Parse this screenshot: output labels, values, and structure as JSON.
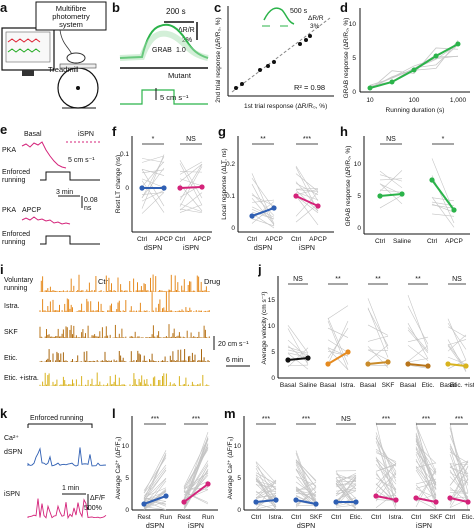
{
  "panels": {
    "a": {
      "label": "a",
      "system": [
        "Multifibre",
        "photometry",
        "system"
      ],
      "treadmill": "Treadmill"
    },
    "b": {
      "label": "b",
      "scale_time": "200 s",
      "scale_dr": "ΔR/R",
      "scale_pct": "2%",
      "green_label": "GRAB",
      "green_value": "1.0",
      "mutant": "Mutant",
      "speed": "5 cm s⁻¹"
    },
    "c": {
      "label": "c",
      "ylabel": "2nd trial response (ΔR/R₀, %)",
      "xlabel": "1st trial response (ΔR/R₀, %)",
      "inset_time": "500 s",
      "inset_dr": "ΔR/R",
      "inset_pct": "3%",
      "r2": "R² = 0.98",
      "ticks": [
        "0",
        "4",
        "8"
      ]
    },
    "d": {
      "label": "d",
      "ylabel": "GRAB response (ΔR/R₀, %)",
      "xlabel": "Running duration (s)",
      "xticks": [
        "10",
        "100",
        "1,000"
      ],
      "yticks": [
        "0",
        "5",
        "10"
      ]
    },
    "e": {
      "label": "e",
      "pka": "PKA",
      "basal": "Basal",
      "ispn": "iSPN",
      "speed": "5 cm s⁻¹",
      "enforced": "Enforced",
      "running": "running",
      "time": "3 min",
      "lt": "0.08",
      "ns": "ns",
      "apcp": "APCP"
    },
    "f": {
      "label": "f",
      "ylabel": "Rest LT change (ns)",
      "sig": [
        "*",
        "NS"
      ],
      "ticks": [
        "Ctrl",
        "APCP",
        "Ctrl",
        "APCP"
      ],
      "groups": [
        "dSPN",
        "iSPN"
      ],
      "yticks": [
        "0",
        "0.1"
      ]
    },
    "g": {
      "label": "g",
      "ylabel": "Local response (ΔLT, ns)",
      "sig": [
        "**",
        "***"
      ],
      "ticks": [
        "Ctrl",
        "APCP",
        "Ctrl",
        "APCP"
      ],
      "groups": [
        "dSPN",
        "iSPN"
      ],
      "yticks": [
        "0",
        "0.1",
        "0.2"
      ]
    },
    "h": {
      "label": "h",
      "ylabel": "GRAB response (ΔR/R₀, %)",
      "sig": [
        "NS",
        "*"
      ],
      "ticks": [
        "Ctrl",
        "Saline",
        "Ctrl",
        "APCP"
      ],
      "yticks": [
        "0",
        "5",
        "10"
      ]
    },
    "i": {
      "label": "i",
      "voluntary": "Voluntary",
      "running": "running",
      "rows": [
        "Istra.",
        "SKF",
        "Etic.",
        "Etic. +istra."
      ],
      "ctrl": "Ctrl",
      "drug": "Drug",
      "scale_speed": "20 cm s⁻¹",
      "scale_time": "6 min"
    },
    "j": {
      "label": "j",
      "ylabel": "Average velocity (cm s⁻¹)",
      "sig": [
        "NS",
        "**",
        "**",
        "**",
        "NS"
      ],
      "ticks": [
        "Basal",
        "Saline",
        "Basal",
        "Istra.",
        "Basal",
        "SKF",
        "Basal",
        "Etic.",
        "Basal",
        "Etic. +istra."
      ],
      "yticks": [
        "0",
        "5",
        "10",
        "15"
      ]
    },
    "k": {
      "label": "k",
      "enforced": "Enforced running",
      "ca": "Ca²⁺",
      "dspn": "dSPN",
      "ispn": "iSPN",
      "time": "1 min",
      "df": "ΔF/F",
      "pct": "500%"
    },
    "l": {
      "label": "l",
      "ylabel": "Average Ca²⁺ (ΔF/F₀)",
      "sig": [
        "***",
        "***"
      ],
      "ticks": [
        "Rest",
        "Run",
        "Rest",
        "Run"
      ],
      "groups": [
        "dSPN",
        "iSPN"
      ],
      "yticks": [
        "0",
        "5",
        "10"
      ]
    },
    "m": {
      "label": "m",
      "ylabel": "Average Ca²⁺ (ΔF/F₀)",
      "sig": [
        "***",
        "***",
        "NS",
        "***",
        "***",
        "***"
      ],
      "ticks": [
        "Ctrl",
        "Istra.",
        "Ctrl",
        "SKF",
        "Ctrl",
        "Etic.",
        "Ctrl",
        "Istra.",
        "Ctrl",
        "SKF",
        "Ctrl",
        "Etic."
      ],
      "groups": [
        "dSPN",
        "iSPN"
      ],
      "yticks": [
        "0",
        "5",
        "10"
      ]
    }
  },
  "colors": {
    "green": "#2bb34a",
    "blue": "#2f5fb3",
    "magenta": "#d4237a",
    "orange": "#e58a1f",
    "brown": "#b8741a",
    "yellow": "#d8b31f",
    "gray": "#b9b9b9"
  }
}
